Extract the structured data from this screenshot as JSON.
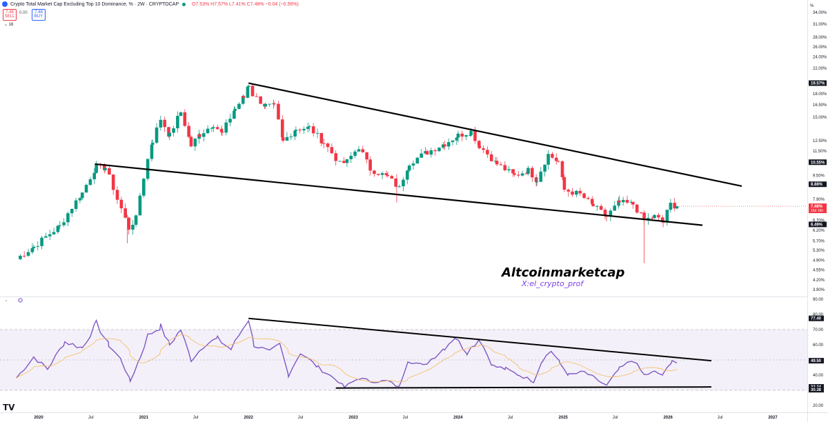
{
  "header": {
    "title": "Crypto Total Market Cap Excluding Top 10 Dominance, % · 2W · CRYPTOCAP",
    "ohlc": "O7.53% H7.57% L7.41% C7.48% −0.04 (−0.56%)"
  },
  "trade": {
    "sell_price": "7.48",
    "sell_label": "SELL",
    "spread": "0.00",
    "buy_price": "7.48",
    "buy_label": "BUY"
  },
  "volume_label": "16",
  "axis_unit": "%",
  "watermark": {
    "brand": "Altcoinmarketcap",
    "handle": "X:el_crypto_prof"
  },
  "colors": {
    "up": "#089981",
    "down": "#f23645",
    "rsi": "#7e57c2",
    "rsi_ma": "#f5c16c",
    "band": "#7e57c2",
    "trendline": "#000000"
  },
  "chart_data": [
    {
      "type": "candlestick",
      "title": "Crypto Total Market Cap Excluding Top 10 Dominance, %",
      "interval": "2W",
      "scale": "log",
      "ylim": [
        3.9,
        34.0
      ],
      "y_ticks": [
        "34.00%",
        "31.00%",
        "28.00%",
        "26.00%",
        "24.00%",
        "22.00%",
        "18.00%",
        "16.50%",
        "15.00%",
        "12.50%",
        "11.50%",
        "9.50%",
        "7.90%",
        "6.70%",
        "6.20%",
        "5.70%",
        "5.30%",
        "4.90%",
        "4.55%",
        "4.20%",
        "3.90%"
      ],
      "price_labels": [
        {
          "value": 19.57,
          "text": "19.57%",
          "color": "#131722",
          "dark": true
        },
        {
          "value": 10.55,
          "text": "10.55%",
          "color": "#131722",
          "dark": true
        },
        {
          "value": 8.88,
          "text": "8.88%",
          "color": "#131722",
          "dark": true
        },
        {
          "value": 7.48,
          "text": "7.48%",
          "sub": "16d 16h",
          "color": "#f23645",
          "dark": false
        },
        {
          "value": 6.49,
          "text": "6.49%",
          "color": "#131722",
          "dark": true
        }
      ],
      "anchors": [
        [
          "2019-10-15",
          4.95
        ],
        [
          "2019-12-15",
          5.45
        ],
        [
          "2020-03-15",
          6.4
        ],
        [
          "2020-06-01",
          8.3
        ],
        [
          "2020-07-20",
          10.2
        ],
        [
          "2020-08-20",
          10.1
        ],
        [
          "2020-10-01",
          7.9
        ],
        [
          "2020-11-10",
          6.3
        ],
        [
          "2020-12-05",
          6.8
        ],
        [
          "2021-01-01",
          9.4
        ],
        [
          "2021-02-01",
          12.5
        ],
        [
          "2021-03-01",
          14.8
        ],
        [
          "2021-04-01",
          13.0
        ],
        [
          "2021-05-10",
          15.6
        ],
        [
          "2021-06-15",
          12.0
        ],
        [
          "2021-07-15",
          13.1
        ],
        [
          "2021-09-01",
          14.2
        ],
        [
          "2021-10-01",
          13.2
        ],
        [
          "2021-11-15",
          16.0
        ],
        [
          "2021-12-15",
          17.5
        ],
        [
          "2022-01-01",
          19.4
        ],
        [
          "2022-01-15",
          17.9
        ],
        [
          "2022-03-01",
          16.4
        ],
        [
          "2022-04-01",
          16.3
        ],
        [
          "2022-05-01",
          12.4
        ],
        [
          "2022-06-15",
          13.7
        ],
        [
          "2022-08-01",
          13.8
        ],
        [
          "2022-09-20",
          12.3
        ],
        [
          "2022-11-15",
          10.4
        ],
        [
          "2022-12-10",
          10.6
        ],
        [
          "2023-01-20",
          11.9
        ],
        [
          "2023-03-01",
          10.0
        ],
        [
          "2023-05-01",
          9.4
        ],
        [
          "2023-06-10",
          8.6
        ],
        [
          "2023-07-15",
          10.5
        ],
        [
          "2023-09-15",
          11.4
        ],
        [
          "2023-11-15",
          12.2
        ],
        [
          "2024-01-01",
          13.0
        ],
        [
          "2024-02-15",
          13.4
        ],
        [
          "2024-03-15",
          12.0
        ],
        [
          "2024-05-15",
          10.4
        ],
        [
          "2024-07-15",
          9.5
        ],
        [
          "2024-09-01",
          9.9
        ],
        [
          "2024-10-01",
          9.2
        ],
        [
          "2024-11-10",
          11.2
        ],
        [
          "2024-12-15",
          10.6
        ],
        [
          "2025-01-05",
          8.5
        ],
        [
          "2025-03-01",
          8.2
        ],
        [
          "2025-04-15",
          7.5
        ],
        [
          "2025-06-01",
          6.9
        ],
        [
          "2025-07-15",
          7.7
        ],
        [
          "2025-09-01",
          7.6
        ],
        [
          "2025-10-10",
          6.7
        ],
        [
          "2025-11-15",
          6.9
        ],
        [
          "2025-12-15",
          6.6
        ],
        [
          "2026-01-10",
          7.6
        ],
        [
          "2026-02-01",
          7.48
        ]
      ],
      "trendlines": [
        {
          "name": "upper",
          "from": [
            "2022-01-01",
            19.57
          ],
          "to": [
            "2026-09-15",
            8.75
          ]
        },
        {
          "name": "lower",
          "from": [
            "2020-07-15",
            10.4
          ],
          "to": [
            "2026-05-01",
            6.45
          ]
        }
      ],
      "wicks": [
        {
          "x": "2025-10-10",
          "low": 4.8,
          "high": 6.9
        },
        {
          "x": "2020-11-05",
          "low": 5.6,
          "high": 7.0
        },
        {
          "x": "2023-06-01",
          "low": 7.7,
          "high": 9.6
        }
      ]
    },
    {
      "type": "line",
      "title": "RSI",
      "ylim": [
        20,
        90
      ],
      "y_ticks": [
        "90.00",
        "80.00",
        "70.00",
        "60.00",
        "40.00",
        "20.00"
      ],
      "bands": [
        70,
        50,
        30
      ],
      "value_labels": [
        {
          "value": 77.4,
          "text": "77.40"
        },
        {
          "value": 49.5,
          "text": "49.50"
        },
        {
          "value": 32.24,
          "text": "32.24"
        },
        {
          "value": 30.38,
          "text": "30.38"
        }
      ],
      "anchors": [
        [
          "2019-10-15",
          38
        ],
        [
          "2019-12-15",
          52
        ],
        [
          "2020-02-01",
          44
        ],
        [
          "2020-04-01",
          62
        ],
        [
          "2020-06-01",
          58
        ],
        [
          "2020-07-20",
          74
        ],
        [
          "2020-09-01",
          60
        ],
        [
          "2020-10-15",
          50
        ],
        [
          "2020-11-15",
          36
        ],
        [
          "2020-12-20",
          52
        ],
        [
          "2021-01-15",
          66
        ],
        [
          "2021-03-01",
          72
        ],
        [
          "2021-04-01",
          60
        ],
        [
          "2021-05-10",
          70
        ],
        [
          "2021-06-15",
          50
        ],
        [
          "2021-08-01",
          60
        ],
        [
          "2021-09-15",
          64
        ],
        [
          "2021-11-01",
          57
        ],
        [
          "2021-12-10",
          70
        ],
        [
          "2022-01-01",
          77
        ],
        [
          "2022-01-20",
          60
        ],
        [
          "2022-03-15",
          55
        ],
        [
          "2022-04-20",
          60
        ],
        [
          "2022-05-20",
          40
        ],
        [
          "2022-07-01",
          55
        ],
        [
          "2022-09-01",
          45
        ],
        [
          "2022-11-10",
          36
        ],
        [
          "2022-12-01",
          32
        ],
        [
          "2023-01-20",
          38
        ],
        [
          "2023-03-01",
          36
        ],
        [
          "2023-05-01",
          36
        ],
        [
          "2023-06-10",
          32
        ],
        [
          "2023-07-10",
          50
        ],
        [
          "2023-09-01",
          46
        ],
        [
          "2023-11-15",
          58
        ],
        [
          "2023-12-20",
          65
        ],
        [
          "2024-02-01",
          55
        ],
        [
          "2024-03-15",
          64
        ],
        [
          "2024-05-01",
          46
        ],
        [
          "2024-06-15",
          44
        ],
        [
          "2024-08-01",
          40
        ],
        [
          "2024-09-20",
          36
        ],
        [
          "2024-10-20",
          50
        ],
        [
          "2024-11-20",
          56
        ],
        [
          "2024-12-20",
          48
        ],
        [
          "2025-01-20",
          40
        ],
        [
          "2025-03-15",
          42
        ],
        [
          "2025-04-20",
          38
        ],
        [
          "2025-06-01",
          33
        ],
        [
          "2025-07-15",
          44
        ],
        [
          "2025-09-01",
          50
        ],
        [
          "2025-10-10",
          40
        ],
        [
          "2025-11-15",
          42
        ],
        [
          "2025-12-15",
          40
        ],
        [
          "2026-01-15",
          50
        ],
        [
          "2026-02-01",
          48
        ]
      ],
      "trendlines": [
        {
          "name": "upper",
          "from": [
            "2022-01-01",
            77.4
          ],
          "to": [
            "2026-06-01",
            49.5
          ]
        },
        {
          "name": "lower",
          "from": [
            "2022-11-01",
            31.5
          ],
          "to": [
            "2026-06-01",
            32.2
          ]
        }
      ]
    }
  ],
  "x_ticks": [
    {
      "date": "2020-01-01",
      "text": "2020",
      "major": true
    },
    {
      "date": "2020-07-01",
      "text": "Jul",
      "major": false
    },
    {
      "date": "2021-01-01",
      "text": "2021",
      "major": true
    },
    {
      "date": "2021-07-01",
      "text": "Jul",
      "major": false
    },
    {
      "date": "2022-01-01",
      "text": "2022",
      "major": true
    },
    {
      "date": "2022-07-01",
      "text": "Jul",
      "major": false
    },
    {
      "date": "2023-01-01",
      "text": "2023",
      "major": true
    },
    {
      "date": "2023-07-01",
      "text": "Jul",
      "major": false
    },
    {
      "date": "2024-01-01",
      "text": "2024",
      "major": true
    },
    {
      "date": "2024-07-01",
      "text": "Jul",
      "major": false
    },
    {
      "date": "2025-01-01",
      "text": "2025",
      "major": true
    },
    {
      "date": "2025-07-01",
      "text": "Jul",
      "major": false
    },
    {
      "date": "2026-01-01",
      "text": "2026",
      "major": true
    },
    {
      "date": "2026-07-01",
      "text": "Jul",
      "major": false
    },
    {
      "date": "2027-01-01",
      "text": "2027",
      "major": true
    }
  ]
}
